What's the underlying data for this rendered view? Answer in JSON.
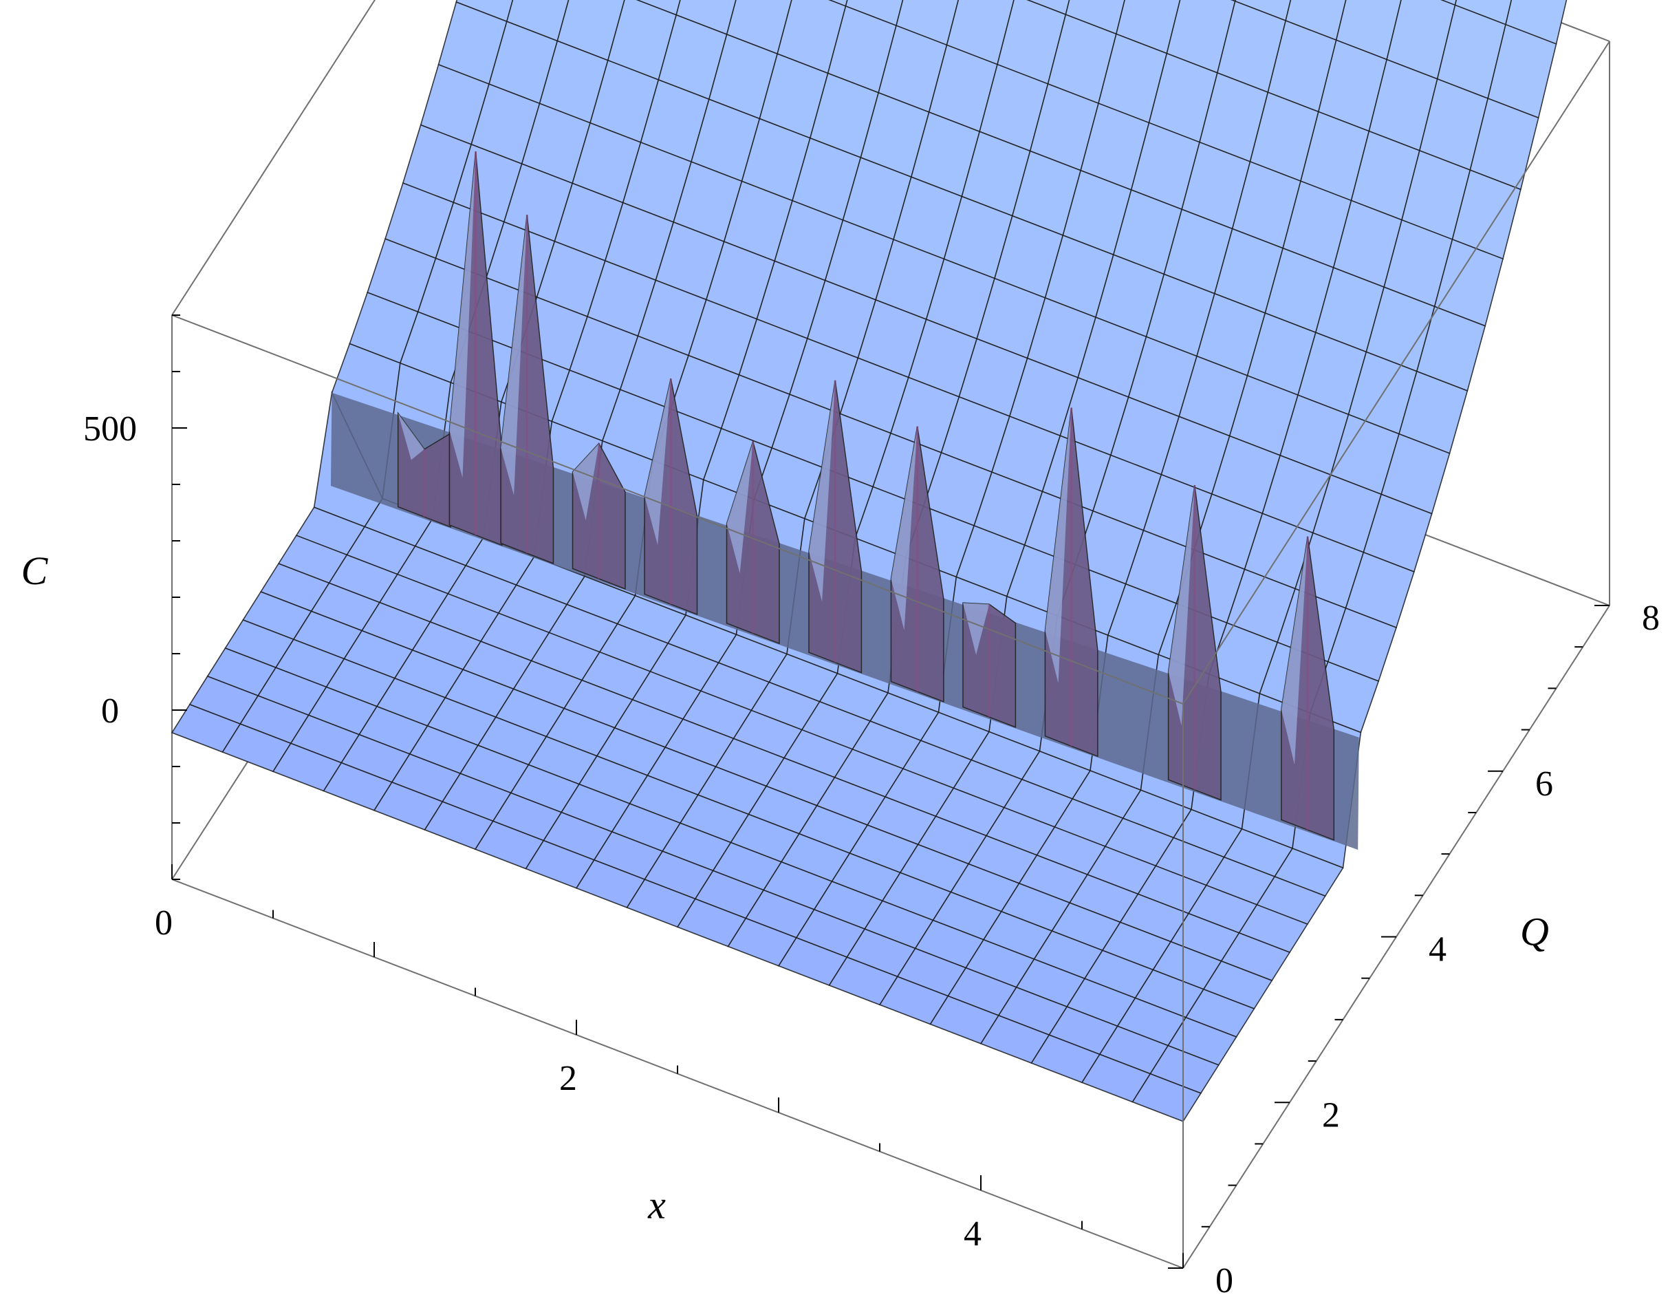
{
  "chart_data": {
    "type": "surface3d",
    "x_axis": {
      "label": "x",
      "range": [
        0,
        5
      ],
      "ticks": [
        0,
        2,
        4
      ]
    },
    "q_axis": {
      "label": "Q",
      "range": [
        0,
        8
      ],
      "ticks": [
        0,
        2,
        4,
        6,
        8
      ]
    },
    "c_axis": {
      "label": "C",
      "range": [
        -300,
        700
      ],
      "ticks": [
        0,
        500
      ]
    },
    "surface": {
      "description": "Smooth sheet rising with Q; singular spikes along an oscillating ridge near Q≈3",
      "base_profile": "C = 18*Q^2 - 40 (Q above ridge); C ≈ -40 (Q below ridge)",
      "ridge_Q_at_x": [
        [
          0,
          3.0
        ],
        [
          5,
          3.3
        ]
      ],
      "spikes": [
        {
          "x": 0.45,
          "C": 80
        },
        {
          "x": 0.7,
          "C": 640
        },
        {
          "x": 0.95,
          "C": 560
        },
        {
          "x": 1.3,
          "C": 200
        },
        {
          "x": 1.65,
          "C": 360
        },
        {
          "x": 2.05,
          "C": 300
        },
        {
          "x": 2.45,
          "C": 460
        },
        {
          "x": 2.85,
          "C": 430
        },
        {
          "x": 3.2,
          "C": 160
        },
        {
          "x": 3.6,
          "C": 560
        },
        {
          "x": 4.2,
          "C": 500
        },
        {
          "x": 4.75,
          "C": 480
        }
      ]
    },
    "colors": {
      "surface": "#a9c9ff",
      "surface_dark": "#5d6a8f",
      "wall": "#6b5a86",
      "spike_tint": "#8a4d84",
      "mesh": "#1a1a1a"
    },
    "box": true,
    "grid": false
  }
}
